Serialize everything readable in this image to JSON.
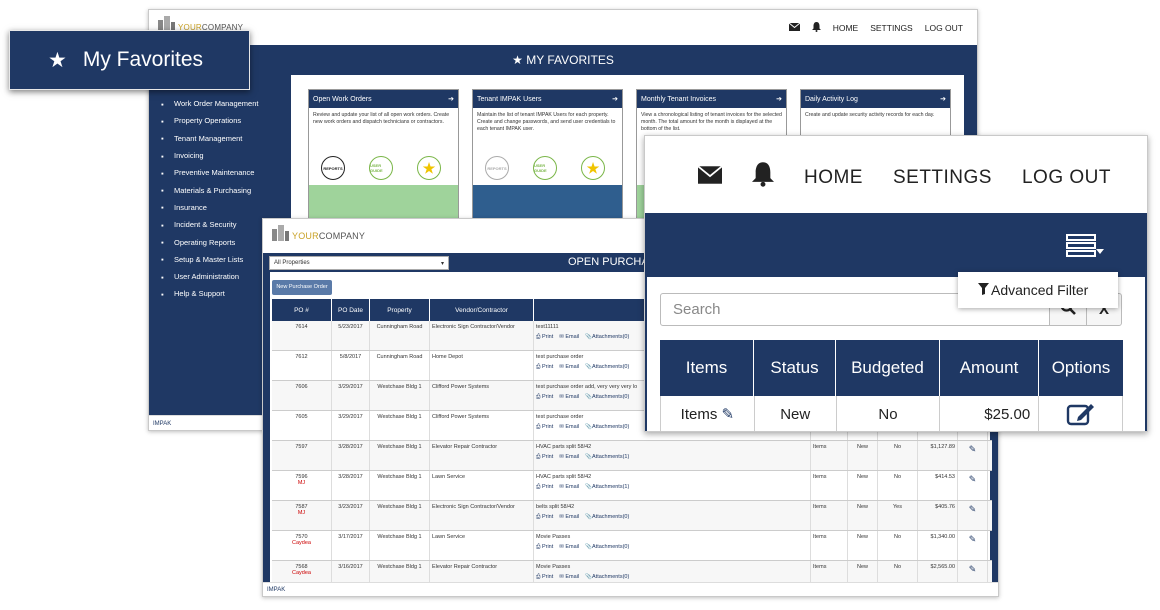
{
  "brand": {
    "your": "YOUR",
    "company": "COMPANY",
    "impak": "IMPAK"
  },
  "nav": {
    "home": "HOME",
    "settings": "SETTINGS",
    "logout": "LOG OUT"
  },
  "favorites_badge": {
    "label": "My Favorites"
  },
  "dashboard": {
    "banner_title": "MY FAVORITES",
    "sidebar": [
      "Work Order Management",
      "Property Operations",
      "Tenant Management",
      "Invoicing",
      "Preventive Maintenance",
      "Materials & Purchasing",
      "Insurance",
      "Incident & Security",
      "Operating Reports",
      "Setup & Master Lists",
      "User Administration",
      "Help & Support"
    ],
    "cards": [
      {
        "title": "Open Work Orders",
        "desc": "Review and update your list of all open work orders. Create new work orders and dispatch technicians or contractors."
      },
      {
        "title": "Tenant IMPAK Users",
        "desc": "Maintain the list of tenant IMPAK Users for each property. Create and change passwords, and send user credentials to each tenant IMPAK user."
      },
      {
        "title": "Monthly Tenant Invoices",
        "desc": "View a chronological listing of tenant invoices for the selected month. The total amount for the month is displayed at the bottom of the list."
      },
      {
        "title": "Daily Activity Log",
        "desc": "Create and update security activity records for each day."
      }
    ],
    "circle_labels": {
      "reports": "REPORTS",
      "guide": "USER GUIDE"
    }
  },
  "purchase_orders": {
    "property_select": "All Properties",
    "title": "OPEN PURCHASE",
    "new_button": "New Purchase Order",
    "columns": [
      "PO #",
      "PO Date",
      "Property",
      "Vendor/Contractor"
    ],
    "print": "Print",
    "email": "Email",
    "rows": [
      {
        "po": "7614",
        "assignee": "",
        "date": "5/23/2017",
        "property": "Cunningham Road",
        "vendor": "Electronic Sign Contractor/Vendor",
        "desc": "test11111",
        "att": "Attachments(0)",
        "items": "",
        "status": "",
        "budgeted": "",
        "amount": ""
      },
      {
        "po": "7612",
        "assignee": "",
        "date": "5/8/2017",
        "property": "Cunningham Road",
        "vendor": "Home Depot",
        "desc": "test purchase order",
        "att": "Attachments(0)",
        "items": "",
        "status": "",
        "budgeted": "",
        "amount": ""
      },
      {
        "po": "7606",
        "assignee": "",
        "date": "3/29/2017",
        "property": "Westchase Bldg 1",
        "vendor": "Clifford Power Systems",
        "desc": "test purchase order add, very very very lo",
        "att": "Attachments(0)",
        "items": "",
        "status": "",
        "budgeted": "",
        "amount": ""
      },
      {
        "po": "7605",
        "assignee": "",
        "date": "3/29/2017",
        "property": "Westchase Bldg 1",
        "vendor": "Clifford Power Systems",
        "desc": "test purchase order",
        "att": "Attachments(0)",
        "items": "",
        "status": "",
        "budgeted": "",
        "amount": ""
      },
      {
        "po": "7597",
        "assignee": "",
        "date": "3/28/2017",
        "property": "Westchase Bldg 1",
        "vendor": "Elevator Repair Contractor",
        "desc": "HVAC parts split 58/42",
        "att": "Attachments(1)",
        "items": "Items",
        "status": "New",
        "budgeted": "No",
        "amount": "$1,127.89"
      },
      {
        "po": "7596",
        "assignee": "MJ",
        "date": "3/28/2017",
        "property": "Westchase Bldg 1",
        "vendor": "Lawn Service",
        "desc": "HVAC parts split 58/42",
        "att": "Attachments(1)",
        "items": "Items",
        "status": "New",
        "budgeted": "No",
        "amount": "$414.53"
      },
      {
        "po": "7587",
        "assignee": "MJ",
        "date": "3/23/2017",
        "property": "Westchase Bldg 1",
        "vendor": "Electronic Sign Contractor/Vendor",
        "desc": "belts split 58/42",
        "att": "Attachments(0)",
        "items": "Items",
        "status": "New",
        "budgeted": "Yes",
        "amount": "$405.76"
      },
      {
        "po": "7570",
        "assignee": "Caydea",
        "date": "3/17/2017",
        "property": "Westchase Bldg 1",
        "vendor": "Lawn Service",
        "desc": "Movie Passes",
        "att": "Attachments(0)",
        "items": "Items",
        "status": "New",
        "budgeted": "No",
        "amount": "$1,340.00"
      },
      {
        "po": "7568",
        "assignee": "Caydea",
        "date": "3/16/2017",
        "property": "Westchase Bldg 1",
        "vendor": "Elevator Repair Contractor",
        "desc": "Movie Passes",
        "att": "Attachments(0)",
        "items": "Items",
        "status": "New",
        "budgeted": "No",
        "amount": "$2,565.00"
      }
    ]
  },
  "zoom": {
    "advanced_filter": "Advanced Filter",
    "search_placeholder": "Search",
    "clear": "X",
    "columns": [
      "Items",
      "Status",
      "Budgeted",
      "Amount",
      "Options"
    ],
    "row": {
      "items": "Items",
      "status": "New",
      "budgeted": "No",
      "amount": "$25.00"
    }
  }
}
